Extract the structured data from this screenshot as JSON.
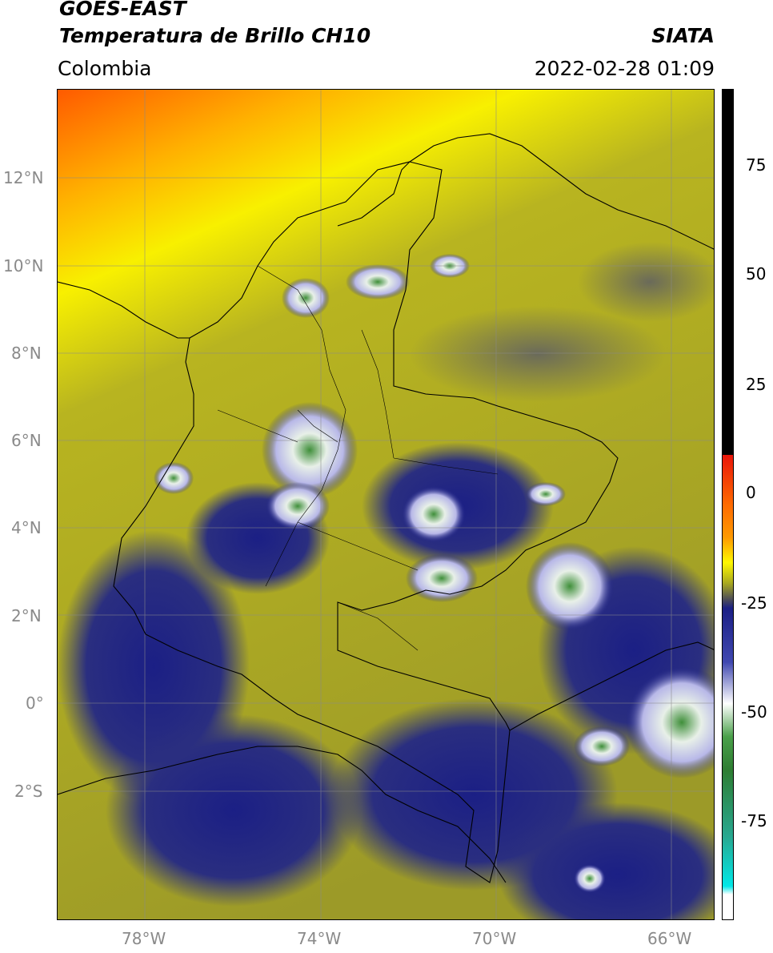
{
  "header": {
    "satellite": "GOES-EAST",
    "product": "Temperatura de Brillo CH10",
    "region": "Colombia",
    "source": "SIATA",
    "datetime": "2022-02-28 01:09"
  },
  "map": {
    "lat_ticks": [
      "12°N",
      "10°N",
      "8°N",
      "6°N",
      "4°N",
      "2°N",
      "0°",
      "2°S"
    ],
    "lon_ticks": [
      "78°W",
      "74°W",
      "70°W",
      "66°W"
    ],
    "lat_range": [
      -5.0,
      14.0
    ],
    "lon_range": [
      -80.0,
      -65.0
    ]
  },
  "colorbar": {
    "ticks": [
      "75",
      "50",
      "25",
      "0",
      "-25",
      "-50",
      "-75"
    ],
    "range": [
      -95,
      90
    ],
    "colors": {
      "black": "#000000",
      "red": "#e8150a",
      "orange": "#ff9a00",
      "yellow": "#fff800",
      "olive": "#a8a820",
      "dark_gray": "#4a4a5a",
      "navy": "#1b1f85",
      "white": "#ffffff",
      "green": "#2e7d32",
      "cyan": "#00d8d8"
    }
  }
}
